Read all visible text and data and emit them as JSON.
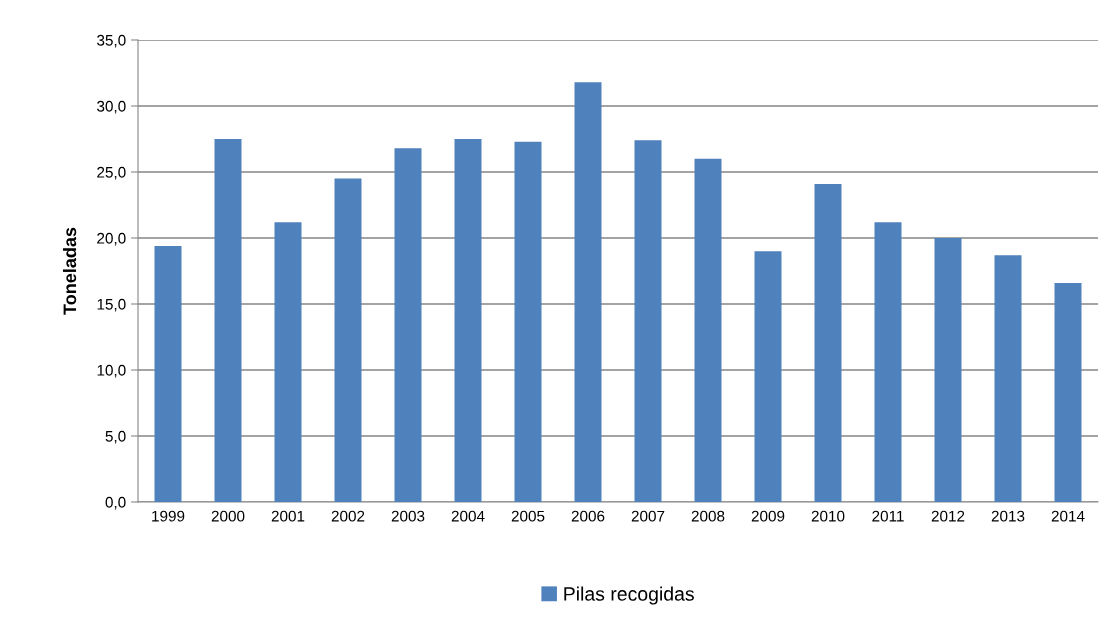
{
  "chart_data": {
    "type": "bar",
    "ylabel": "Toneladas",
    "categories": [
      "1999",
      "2000",
      "2001",
      "2002",
      "2003",
      "2004",
      "2005",
      "2006",
      "2007",
      "2008",
      "2009",
      "2010",
      "2011",
      "2012",
      "2013",
      "2014"
    ],
    "series": [
      {
        "name": "Pilas recogidas",
        "color": "#4f81bd",
        "values": [
          19.4,
          27.5,
          21.2,
          24.5,
          26.8,
          27.5,
          27.3,
          31.8,
          27.4,
          26.0,
          19.0,
          24.1,
          21.2,
          20.0,
          18.7,
          16.6
        ]
      }
    ],
    "ylim": [
      0,
      35
    ],
    "yticks": [
      {
        "value": 0,
        "label": "0,0"
      },
      {
        "value": 5,
        "label": "5,0"
      },
      {
        "value": 10,
        "label": "10,0"
      },
      {
        "value": 15,
        "label": "15,0"
      },
      {
        "value": 20,
        "label": "20,0"
      },
      {
        "value": 25,
        "label": "25,0"
      },
      {
        "value": 30,
        "label": "30,0"
      },
      {
        "value": 35,
        "label": "35,0"
      }
    ],
    "grid": "y",
    "legend": "bottom"
  }
}
